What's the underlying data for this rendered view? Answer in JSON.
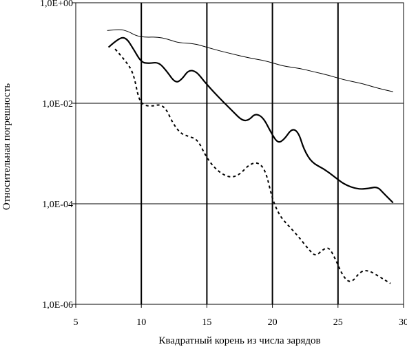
{
  "chart_data": {
    "type": "line",
    "xlabel": "Квадратный корень из числа зарядов",
    "ylabel": "Относительная погрешность",
    "xlim": [
      5,
      30
    ],
    "ylim": [
      1e-06,
      1
    ],
    "y_scale": "log",
    "x_ticks": [
      5,
      10,
      15,
      20,
      25,
      30
    ],
    "x_tick_labels": [
      "5",
      "10",
      "15",
      "20",
      "25",
      "30"
    ],
    "y_ticks": [
      1e-06,
      0.0001,
      0.01,
      1
    ],
    "y_tick_labels": [
      "1,0E-06",
      "1,0E-04",
      "1,0E-02",
      "1,0E+00"
    ],
    "vertical_gridlines": [
      10,
      15,
      20,
      25
    ],
    "horizontal_gridlines": [
      0.0001,
      0.01
    ],
    "series": [
      {
        "style": "thin-solid",
        "color": "#000000",
        "points": [
          [
            7.4,
            0.28
          ],
          [
            8.3,
            0.3
          ],
          [
            9.0,
            0.27
          ],
          [
            9.6,
            0.22
          ],
          [
            10.3,
            0.205
          ],
          [
            11.2,
            0.21
          ],
          [
            12.0,
            0.19
          ],
          [
            12.8,
            0.16
          ],
          [
            14.0,
            0.155
          ],
          [
            15.0,
            0.13
          ],
          [
            16.0,
            0.11
          ],
          [
            17.0,
            0.095
          ],
          [
            18.2,
            0.08
          ],
          [
            19.5,
            0.07
          ],
          [
            20.8,
            0.055
          ],
          [
            22.0,
            0.05
          ],
          [
            23.2,
            0.042
          ],
          [
            24.3,
            0.036
          ],
          [
            25.5,
            0.029
          ],
          [
            26.8,
            0.025
          ],
          [
            28.0,
            0.02
          ],
          [
            29.2,
            0.017
          ]
        ]
      },
      {
        "style": "thick-solid",
        "color": "#000000",
        "points": [
          [
            7.5,
            0.13
          ],
          [
            8.2,
            0.19
          ],
          [
            8.8,
            0.21
          ],
          [
            9.4,
            0.12
          ],
          [
            10.0,
            0.065
          ],
          [
            10.6,
            0.062
          ],
          [
            11.3,
            0.066
          ],
          [
            11.9,
            0.045
          ],
          [
            12.6,
            0.025
          ],
          [
            13.1,
            0.03
          ],
          [
            13.6,
            0.046
          ],
          [
            14.2,
            0.043
          ],
          [
            14.8,
            0.027
          ],
          [
            15.5,
            0.017
          ],
          [
            16.2,
            0.011
          ],
          [
            17.0,
            0.0068
          ],
          [
            17.7,
            0.0045
          ],
          [
            18.2,
            0.0046
          ],
          [
            18.7,
            0.0063
          ],
          [
            19.3,
            0.0052
          ],
          [
            19.9,
            0.0026
          ],
          [
            20.4,
            0.0016
          ],
          [
            20.9,
            0.0019
          ],
          [
            21.5,
            0.0032
          ],
          [
            22.0,
            0.0026
          ],
          [
            22.4,
            0.0012
          ],
          [
            23.0,
            0.00066
          ],
          [
            23.9,
            0.0005
          ],
          [
            24.7,
            0.00035
          ],
          [
            25.5,
            0.00024
          ],
          [
            26.5,
            0.000195
          ],
          [
            27.3,
            0.0002
          ],
          [
            28.0,
            0.00022
          ],
          [
            28.5,
            0.00016
          ],
          [
            29.2,
            0.000105
          ]
        ]
      },
      {
        "style": "dashed",
        "color": "#000000",
        "points": [
          [
            8.0,
            0.12
          ],
          [
            8.8,
            0.07
          ],
          [
            9.4,
            0.04
          ],
          [
            9.8,
            0.012
          ],
          [
            10.2,
            0.009
          ],
          [
            10.9,
            0.0088
          ],
          [
            11.4,
            0.0095
          ],
          [
            11.9,
            0.0078
          ],
          [
            12.4,
            0.004
          ],
          [
            13.0,
            0.0025
          ],
          [
            13.6,
            0.0022
          ],
          [
            14.3,
            0.0019
          ],
          [
            14.9,
            0.0009
          ],
          [
            15.5,
            0.00055
          ],
          [
            16.1,
            0.0004
          ],
          [
            16.8,
            0.00033
          ],
          [
            17.5,
            0.00038
          ],
          [
            18.2,
            0.0006
          ],
          [
            18.9,
            0.00068
          ],
          [
            19.5,
            0.00045
          ],
          [
            20.0,
            0.00012
          ],
          [
            20.6,
            5.5e-05
          ],
          [
            21.3,
            3.5e-05
          ],
          [
            22.0,
            2.2e-05
          ],
          [
            22.8,
            1.2e-05
          ],
          [
            23.3,
            9e-06
          ],
          [
            23.8,
            1.2e-05
          ],
          [
            24.3,
            1.4e-05
          ],
          [
            24.8,
            8e-06
          ],
          [
            25.4,
            3.5e-06
          ],
          [
            26.0,
            2.6e-06
          ],
          [
            26.7,
            4.5e-06
          ],
          [
            27.3,
            4.8e-06
          ],
          [
            28.2,
            3.5e-06
          ],
          [
            29.0,
            2.6e-06
          ]
        ]
      }
    ]
  }
}
